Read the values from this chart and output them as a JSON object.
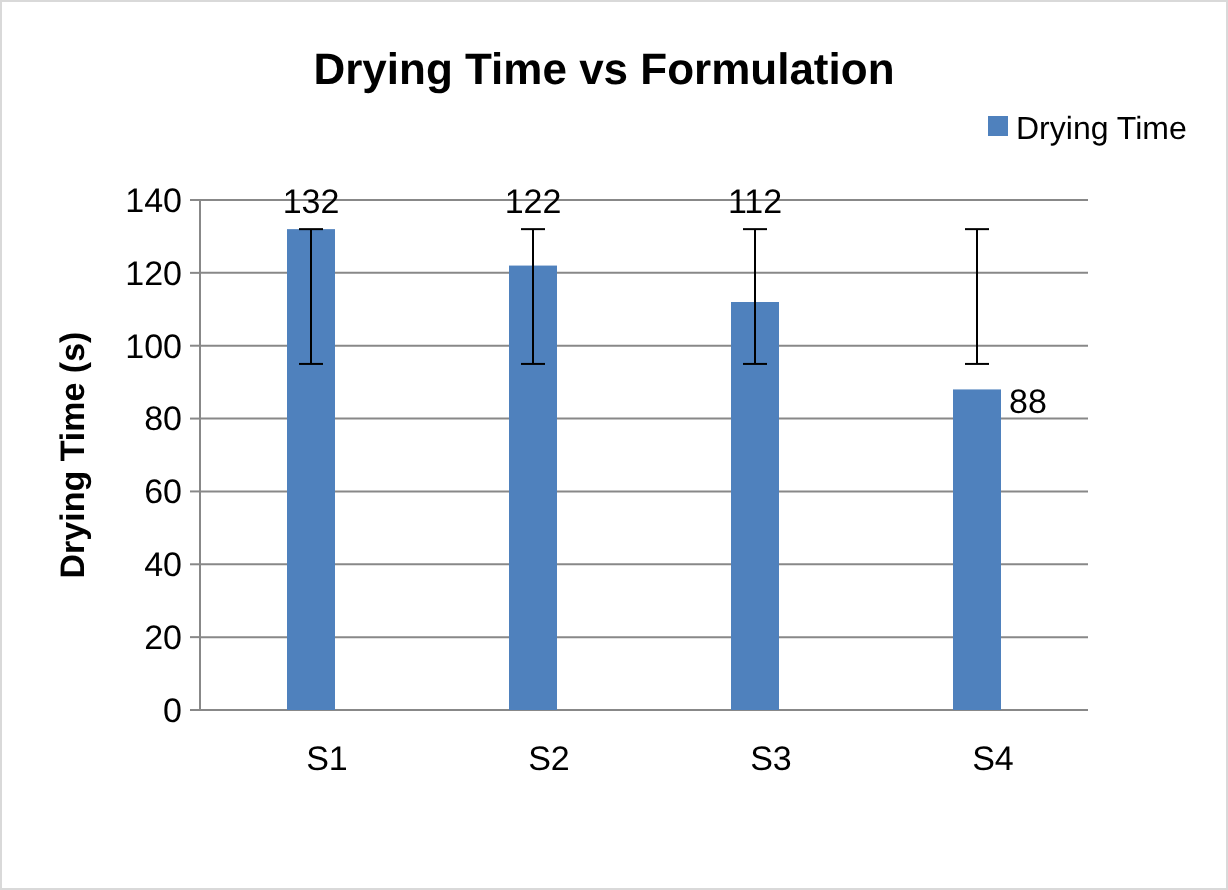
{
  "chart_data": {
    "type": "bar",
    "title": "Drying Time vs Formulation",
    "ylabel": "Drying Time (s)",
    "categories": [
      "S1",
      "S2",
      "S3",
      "S4"
    ],
    "series": [
      {
        "name": "Drying Time",
        "color": "#4f81bd",
        "values": [
          132,
          122,
          112,
          88
        ],
        "errors": [
          [
            95,
            132
          ],
          [
            95,
            132
          ],
          [
            95,
            132
          ],
          [
            95,
            132
          ]
        ]
      }
    ],
    "ylim": [
      0,
      140
    ],
    "yticks": [
      0,
      20,
      40,
      60,
      80,
      100,
      120,
      140
    ],
    "grid": "y",
    "legend": "top right",
    "data_labels": true
  }
}
